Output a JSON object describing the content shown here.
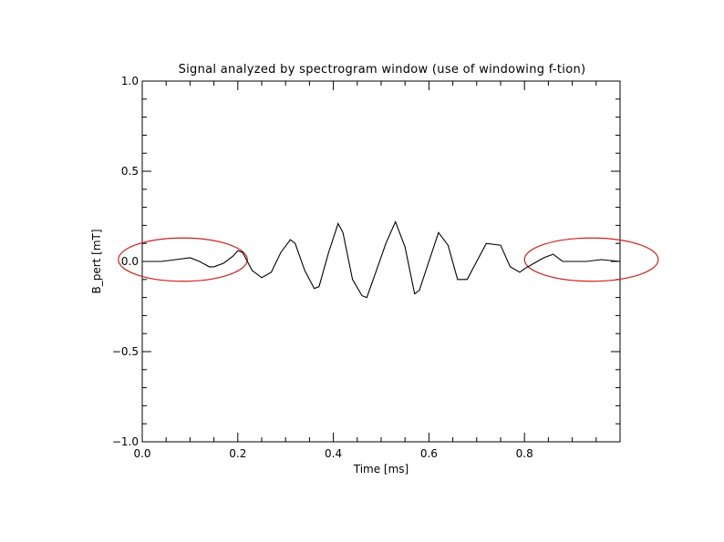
{
  "chart_data": {
    "type": "line",
    "title": "Signal analyzed by spectrogram window (use of windowing f-tion)",
    "xlabel": "Time [ms]",
    "ylabel": "B_pert [mT]",
    "xlim": [
      0.0,
      1.0
    ],
    "ylim": [
      -1.0,
      1.0
    ],
    "x_tick_values": [
      0.0,
      0.2,
      0.4,
      0.6,
      0.8
    ],
    "x_tick_labels": [
      "0.0",
      "0.2",
      "0.4",
      "0.6",
      "0.8"
    ],
    "y_tick_values": [
      -1.0,
      -0.5,
      0.0,
      0.5,
      1.0
    ],
    "y_tick_labels": [
      "−1.0",
      "−0.5",
      "0.0",
      "0.5",
      "1.0"
    ],
    "grid": false,
    "line_color": "#000000",
    "annotation_color": "#cc2222",
    "series": [
      {
        "x": [
          0.0,
          0.04,
          0.07,
          0.1,
          0.12,
          0.14,
          0.15,
          0.17,
          0.19,
          0.2,
          0.21,
          0.22,
          0.23,
          0.25,
          0.27,
          0.29,
          0.31,
          0.32,
          0.34,
          0.36,
          0.37,
          0.39,
          0.41,
          0.42,
          0.44,
          0.46,
          0.47,
          0.49,
          0.51,
          0.53,
          0.55,
          0.57,
          0.58,
          0.6,
          0.62,
          0.64,
          0.66,
          0.68,
          0.7,
          0.72,
          0.75,
          0.77,
          0.79,
          0.8,
          0.82,
          0.84,
          0.86,
          0.88,
          0.9,
          0.93,
          0.96,
          1.0
        ],
        "y": [
          0.0,
          0.0,
          0.01,
          0.02,
          0.0,
          -0.03,
          -0.03,
          -0.01,
          0.03,
          0.06,
          0.05,
          0.0,
          -0.05,
          -0.09,
          -0.06,
          0.05,
          0.12,
          0.1,
          -0.05,
          -0.15,
          -0.14,
          0.05,
          0.21,
          0.16,
          -0.1,
          -0.19,
          -0.2,
          -0.05,
          0.1,
          0.22,
          0.08,
          -0.18,
          -0.16,
          0.0,
          0.16,
          0.09,
          -0.1,
          -0.1,
          0.0,
          0.1,
          0.09,
          -0.03,
          -0.06,
          -0.04,
          -0.01,
          0.02,
          0.04,
          0.0,
          0.0,
          0.0,
          0.01,
          0.0
        ]
      }
    ],
    "annotations": [
      {
        "shape": "ellipse",
        "x_range": [
          -0.05,
          0.22
        ],
        "y_range": [
          -0.11,
          0.13
        ]
      },
      {
        "shape": "ellipse",
        "x_range": [
          0.8,
          1.08
        ],
        "y_range": [
          -0.11,
          0.13
        ]
      }
    ]
  }
}
